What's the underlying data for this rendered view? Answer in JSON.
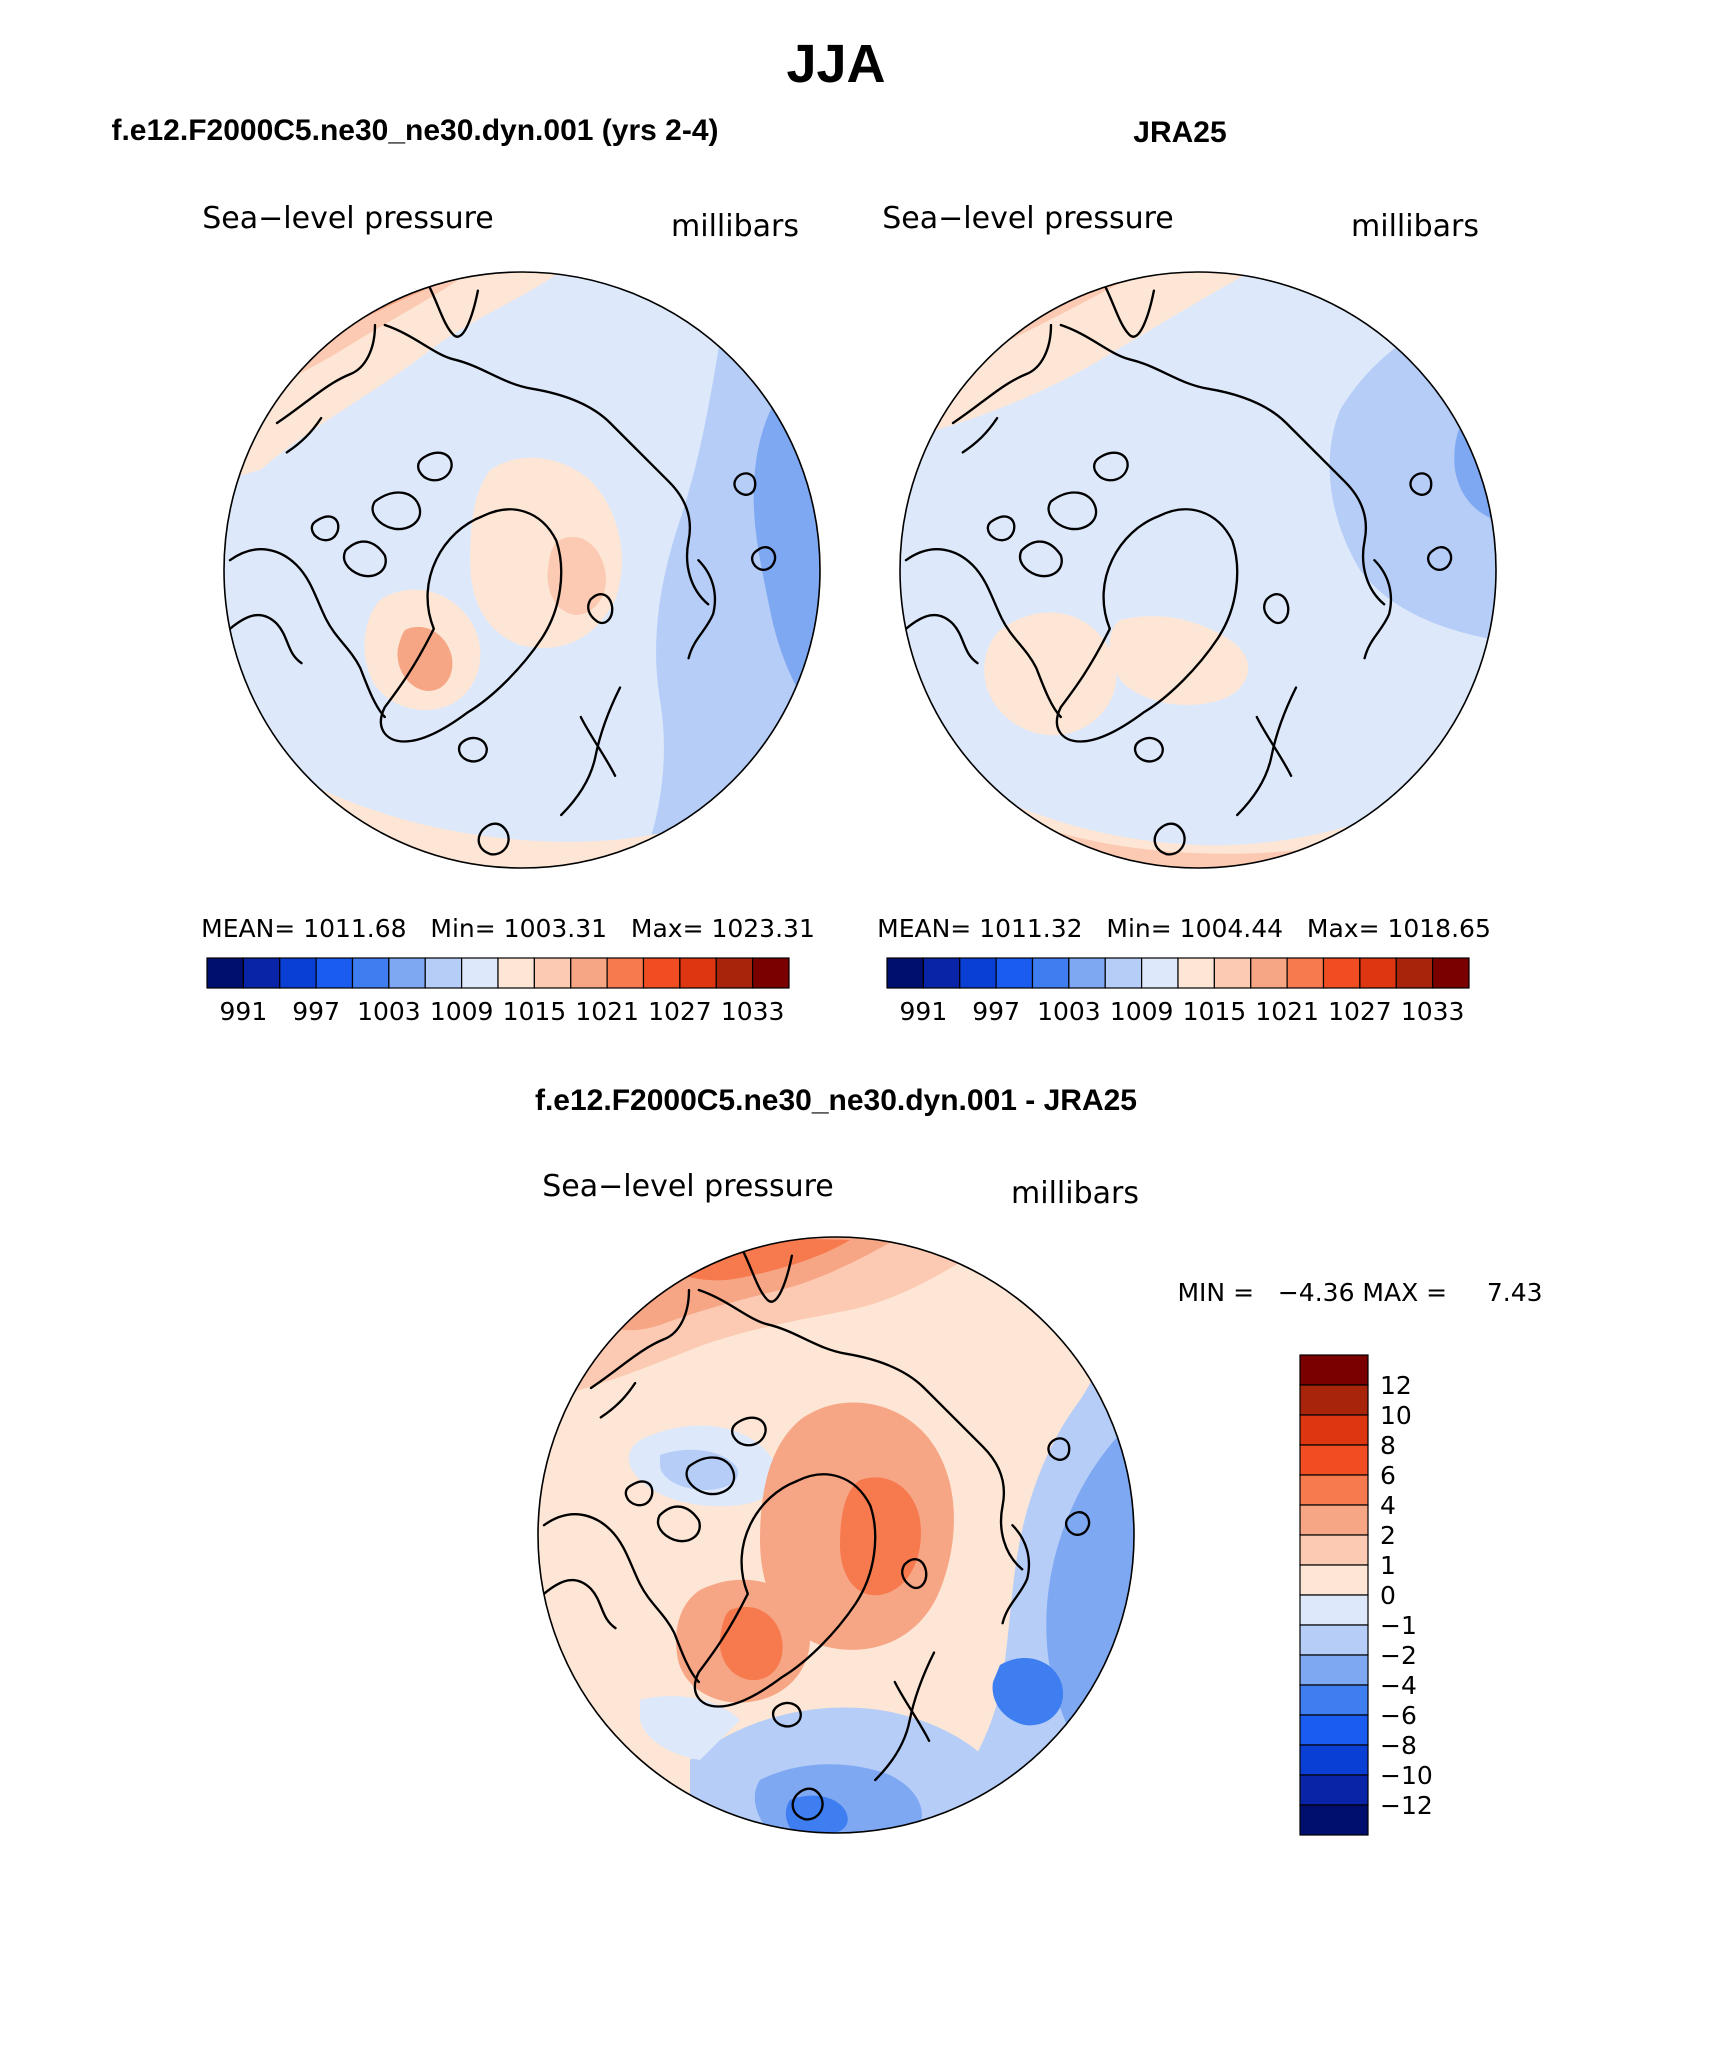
{
  "title": "JJA",
  "palette": {
    "abs": [
      "#000f6e",
      "#0a24a8",
      "#0a3fd6",
      "#1a5cf0",
      "#3f7ef0",
      "#7fa8f2",
      "#b5cdf7",
      "#dde9fb",
      "#fde6d5",
      "#fccab2",
      "#f7a685",
      "#f77a4f",
      "#f04e22",
      "#de3611",
      "#a8240b",
      "#7a0000"
    ],
    "diff": [
      "#000f6e",
      "#0a24a8",
      "#0a3fd6",
      "#1a5cf0",
      "#3f7ef0",
      "#7fa8f2",
      "#b5cdf7",
      "#dde9fb",
      "#fde6d5",
      "#fccab2",
      "#f7a685",
      "#f77a4f",
      "#f04e22",
      "#de3611",
      "#a8240b",
      "#7a0000"
    ]
  },
  "panels": [
    {
      "run": "f.e12.F2000C5.ne30_ne30.dyn.001 (yrs 2-4)",
      "variable": "Sea−level pressure",
      "units": "millibars",
      "stats": "MEAN= 1011.68   Min= 1003.31   Max= 1023.31",
      "mean": 1011.68,
      "min": 1003.31,
      "max": 1023.31,
      "colorbar_labels": [
        "991",
        "997",
        "1003",
        "1009",
        "1015",
        "1021",
        "1027",
        "1033"
      ]
    },
    {
      "run": "JRA25",
      "variable": "Sea−level pressure",
      "units": "millibars",
      "stats": "MEAN= 1011.32   Min= 1004.44   Max= 1018.65",
      "mean": 1011.32,
      "min": 1004.44,
      "max": 1018.65,
      "colorbar_labels": [
        "991",
        "997",
        "1003",
        "1009",
        "1015",
        "1021",
        "1027",
        "1033"
      ]
    }
  ],
  "difference": {
    "title": "f.e12.F2000C5.ne30_ne30.dyn.001 - JRA25",
    "variable": "Sea−level pressure",
    "units": "millibars",
    "minmax": "MIN =   −4.36 MAX =     7.43",
    "min": -4.36,
    "max": 7.43,
    "colorbar_labels": [
      "12",
      "10",
      "8",
      "6",
      "4",
      "2",
      "1",
      "0",
      "−1",
      "−2",
      "−4",
      "−6",
      "−8",
      "−10",
      "−12"
    ]
  }
}
